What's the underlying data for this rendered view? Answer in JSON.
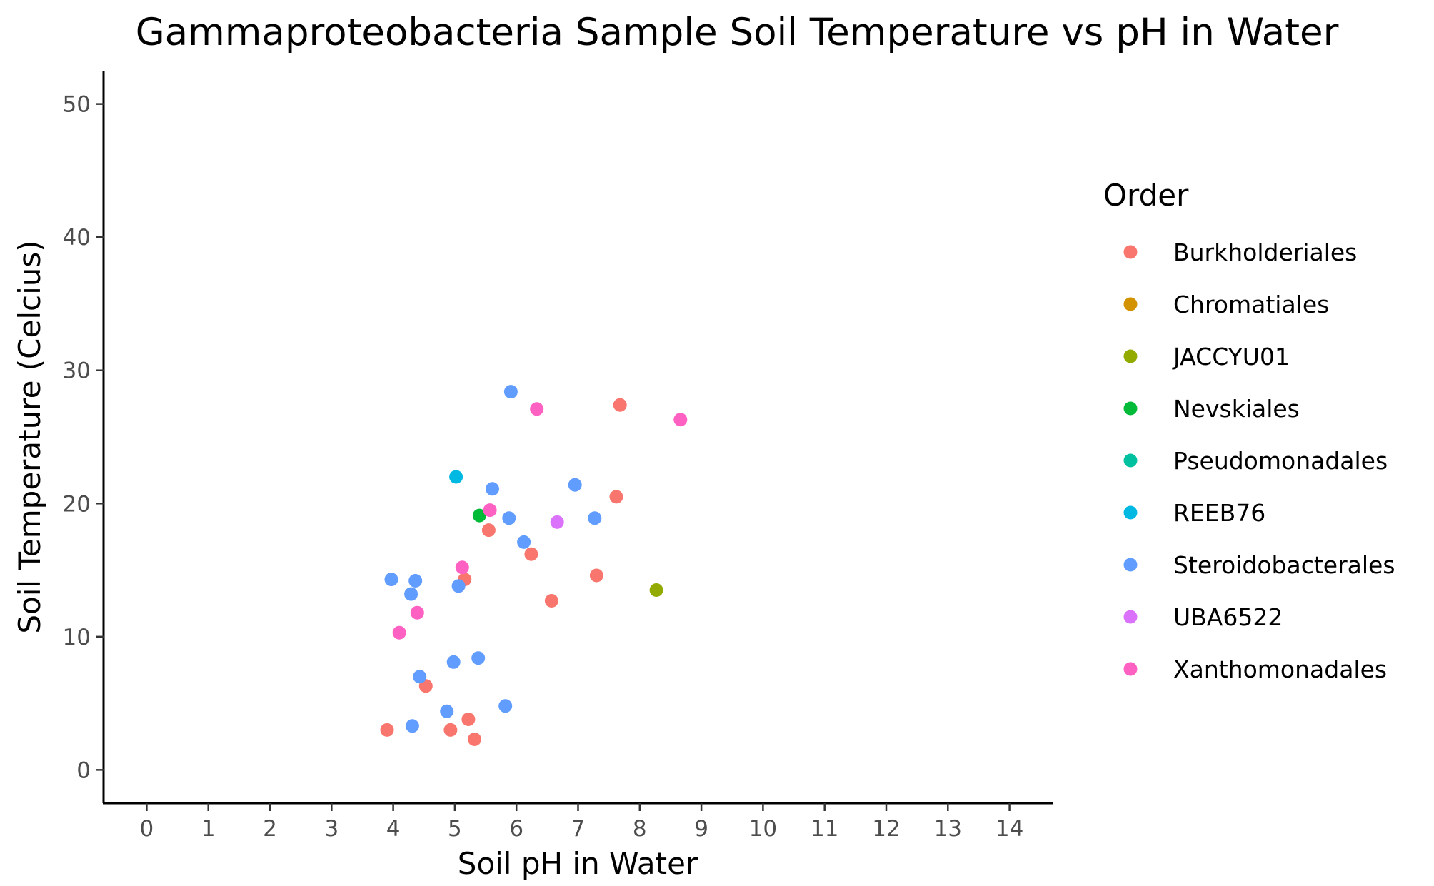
{
  "chart_data": {
    "type": "scatter",
    "title": "Gammaproteobacteria Sample Soil Temperature vs pH in Water",
    "xlabel": "Soil pH in Water",
    "ylabel": "Soil Temperature (Celcius)",
    "xlim": [
      -0.7,
      14.7
    ],
    "ylim": [
      -2.5,
      52.5
    ],
    "xticks": [
      "0",
      "1",
      "2",
      "3",
      "4",
      "5",
      "6",
      "7",
      "8",
      "9",
      "10",
      "11",
      "12",
      "13",
      "14"
    ],
    "yticks": [
      "0",
      "10",
      "20",
      "30",
      "40",
      "50"
    ],
    "grid": false,
    "legend_title": "Order",
    "legend_position": "right",
    "series": [
      {
        "name": "Burkholderiales",
        "color": "#F8766D",
        "points": [
          [
            7.68,
            27.4
          ],
          [
            7.62,
            20.5
          ],
          [
            5.55,
            18.0
          ],
          [
            6.24,
            16.2
          ],
          [
            5.16,
            14.3
          ],
          [
            7.3,
            14.6
          ],
          [
            6.57,
            12.7
          ],
          [
            4.53,
            6.3
          ],
          [
            3.9,
            3.0
          ],
          [
            4.93,
            3.0
          ],
          [
            5.22,
            3.8
          ],
          [
            5.32,
            2.3
          ]
        ]
      },
      {
        "name": "Chromatiales",
        "color": "#D39200",
        "points": []
      },
      {
        "name": "JACCYU01",
        "color": "#93AA00",
        "points": [
          [
            8.27,
            13.5
          ]
        ]
      },
      {
        "name": "Nevskiales",
        "color": "#00BA38",
        "points": [
          [
            5.4,
            19.1
          ]
        ]
      },
      {
        "name": "Pseudomonadales",
        "color": "#00C19F",
        "points": []
      },
      {
        "name": "REEB76",
        "color": "#00B9E3",
        "points": [
          [
            5.02,
            22.0
          ]
        ]
      },
      {
        "name": "Steroidobacterales",
        "color": "#619CFF",
        "points": [
          [
            5.91,
            28.4
          ],
          [
            5.61,
            21.1
          ],
          [
            6.95,
            21.4
          ],
          [
            5.88,
            18.9
          ],
          [
            7.27,
            18.9
          ],
          [
            6.12,
            17.1
          ],
          [
            3.97,
            14.3
          ],
          [
            4.36,
            14.2
          ],
          [
            4.29,
            13.2
          ],
          [
            5.06,
            13.8
          ],
          [
            4.43,
            7.0
          ],
          [
            4.98,
            8.1
          ],
          [
            5.38,
            8.4
          ],
          [
            5.82,
            4.8
          ],
          [
            4.87,
            4.4
          ],
          [
            4.31,
            3.3
          ]
        ]
      },
      {
        "name": "UBA6522",
        "color": "#DB72FB",
        "points": [
          [
            6.66,
            18.6
          ]
        ]
      },
      {
        "name": "Xanthomonadales",
        "color": "#FF61C3",
        "points": [
          [
            6.33,
            27.1
          ],
          [
            8.66,
            26.3
          ],
          [
            5.57,
            19.5
          ],
          [
            5.12,
            15.2
          ],
          [
            4.39,
            11.8
          ],
          [
            4.1,
            10.3
          ]
        ]
      }
    ]
  }
}
